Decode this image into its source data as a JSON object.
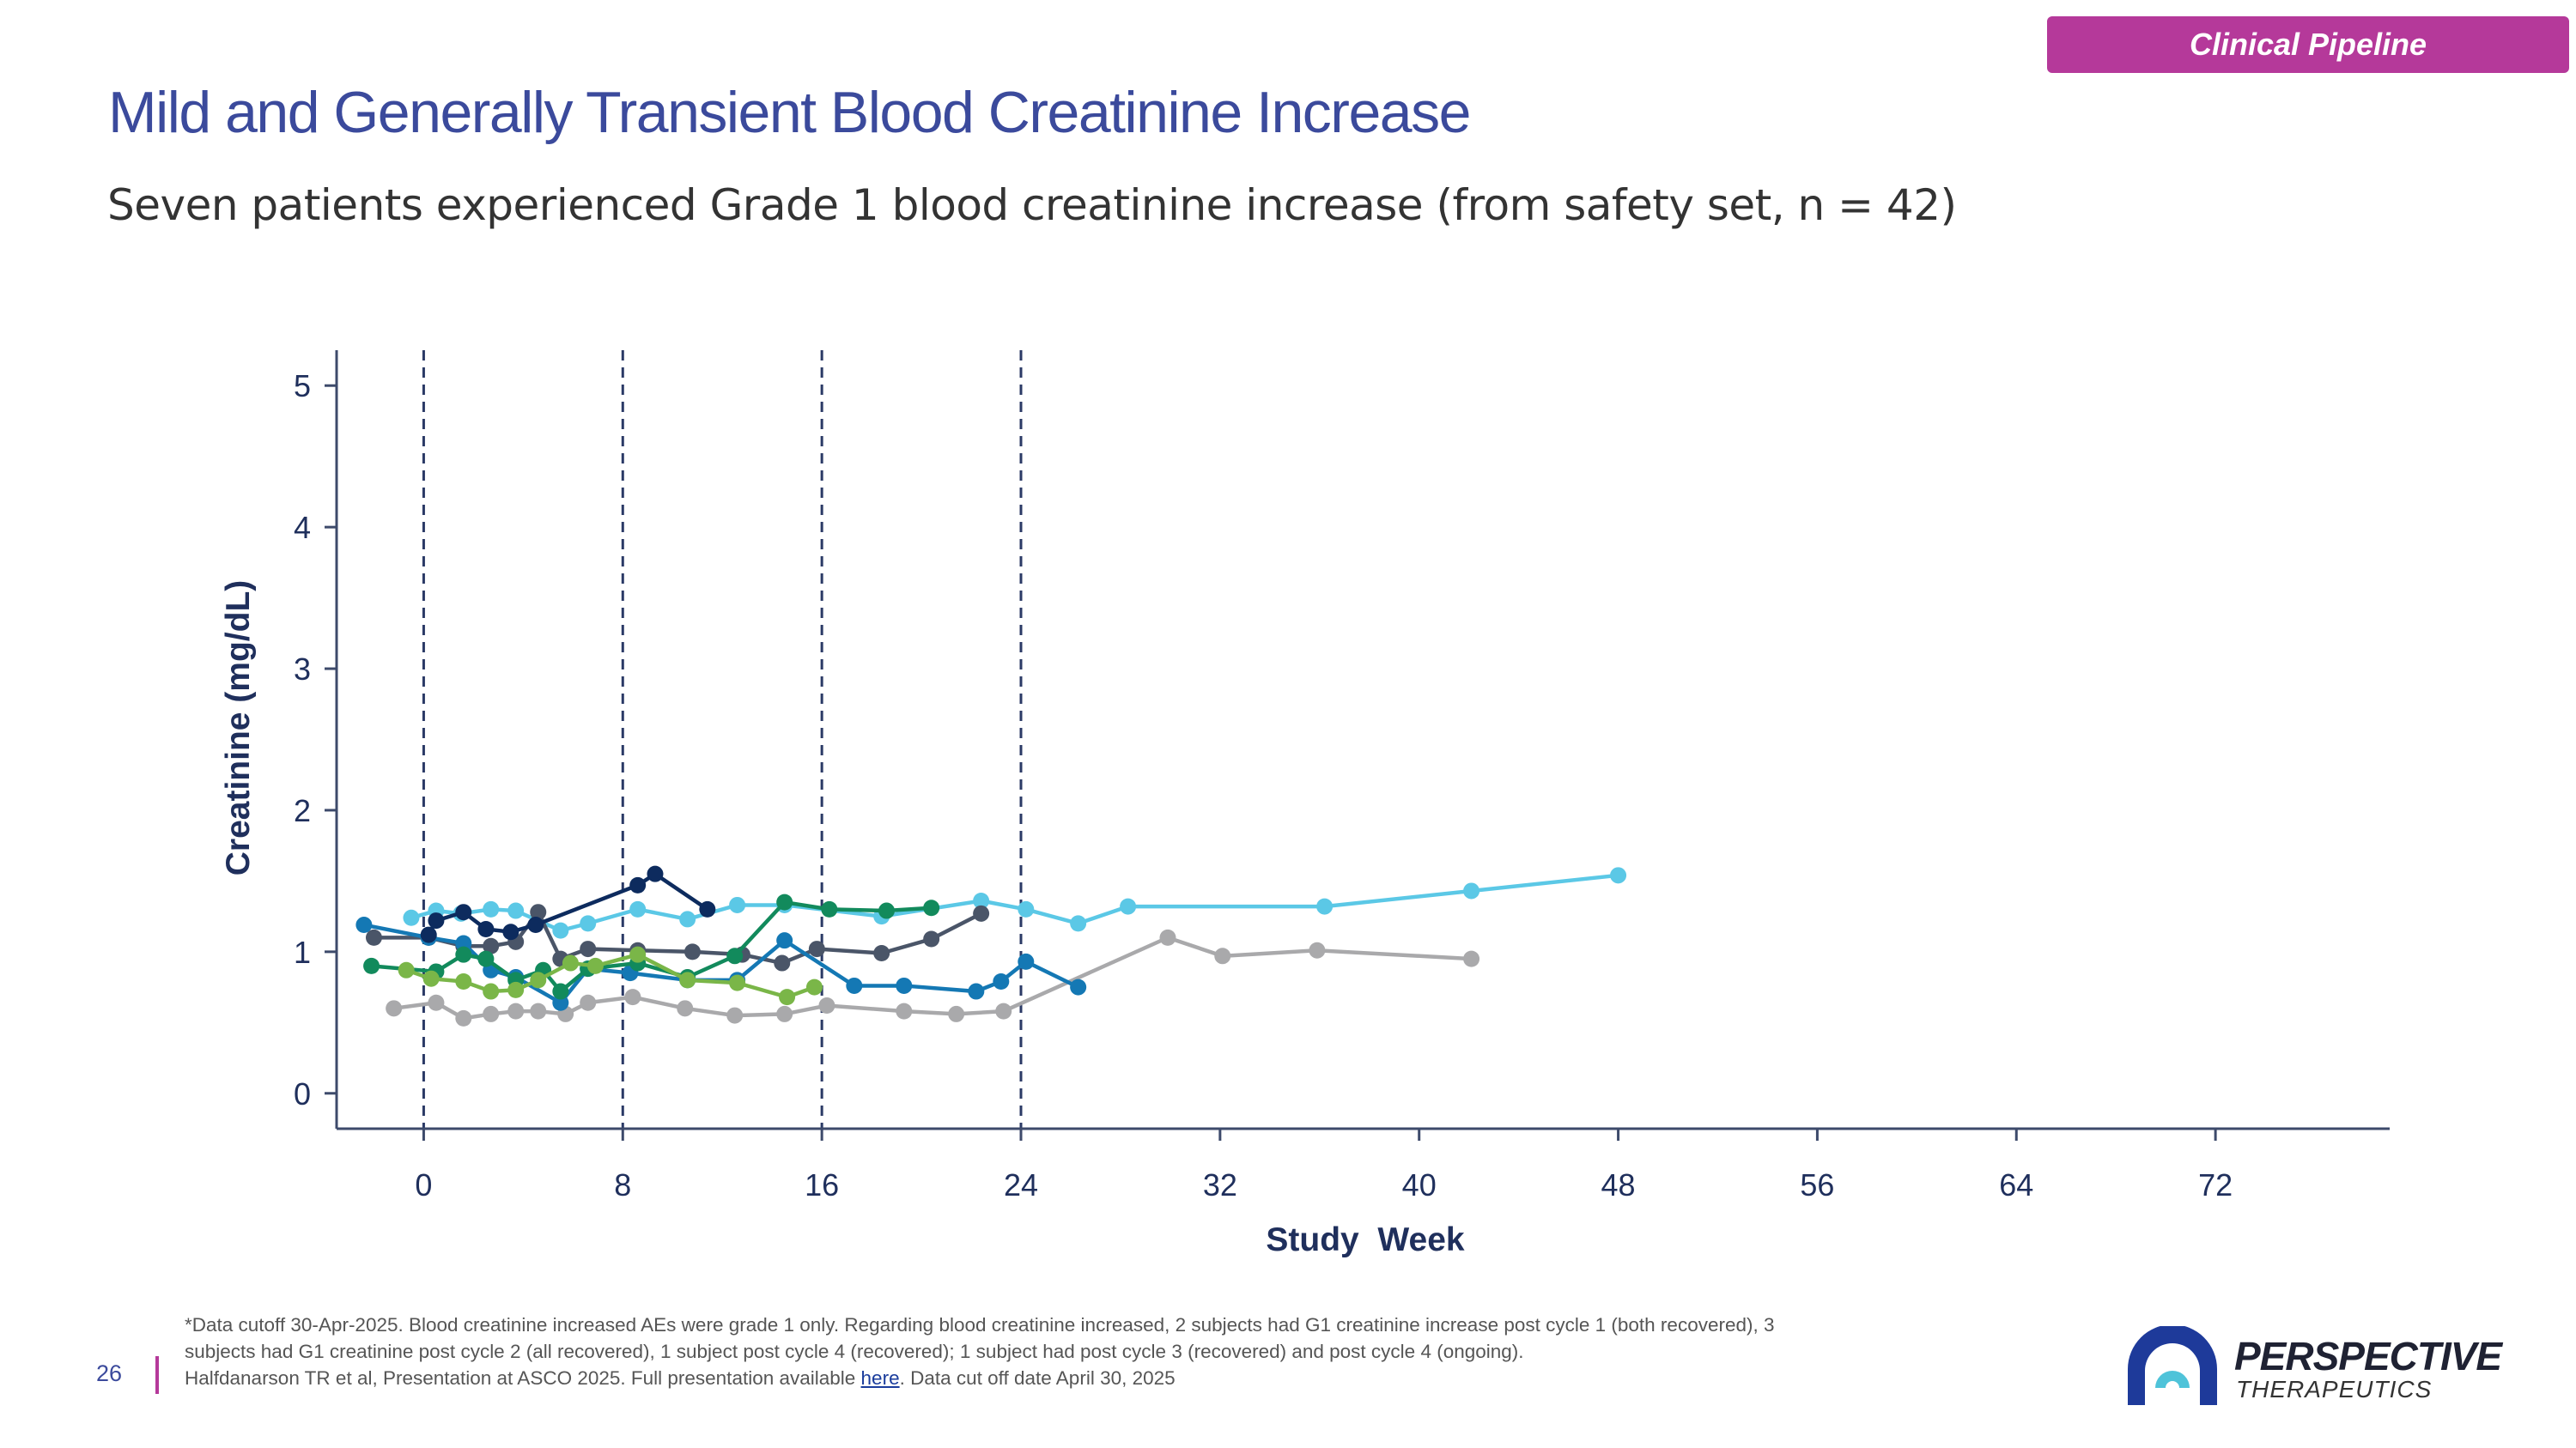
{
  "header": {
    "badge": "Clinical Pipeline",
    "title": "Mild and Generally Transient Blood Creatinine Increase",
    "subtitle": "Seven patients experienced Grade 1 blood creatinine increase (from safety set, n = 42)"
  },
  "chart_data": {
    "type": "line",
    "xlabel": "Study  Week",
    "ylabel": "Creatinine (mg/dL)",
    "xlim": [
      -3.5,
      79
    ],
    "ylim": [
      -0.25,
      5.25
    ],
    "xticks": [
      0,
      8,
      16,
      24,
      32,
      40,
      48,
      56,
      64,
      72
    ],
    "yticks": [
      0,
      1,
      2,
      3,
      4,
      5
    ],
    "reference_lines_x": [
      0,
      8,
      16,
      24
    ],
    "grid": false,
    "series": [
      {
        "color": "#5bc8e6",
        "x": [
          -0.5,
          0.5,
          1.5,
          2.7,
          3.7,
          5.5,
          6.6,
          8.6,
          10.6,
          12.6,
          14.5,
          18.4,
          22.4,
          24.2,
          26.3,
          28.3,
          36.2,
          42.1,
          48
        ],
        "y": [
          1.24,
          1.29,
          1.27,
          1.3,
          1.29,
          1.15,
          1.2,
          1.3,
          1.23,
          1.33,
          1.33,
          1.25,
          1.36,
          1.3,
          1.2,
          1.32,
          1.32,
          1.43,
          1.54
        ]
      },
      {
        "color": "#a9a9ab",
        "x": [
          -1.2,
          0.5,
          1.6,
          2.7,
          3.7,
          4.6,
          5.7,
          6.6,
          8.4,
          10.5,
          12.5,
          14.5,
          16.2,
          19.3,
          21.4,
          23.3,
          29.9,
          32.1,
          35.9,
          42.1
        ],
        "y": [
          0.6,
          0.64,
          0.53,
          0.56,
          0.58,
          0.58,
          0.56,
          0.64,
          0.68,
          0.6,
          0.55,
          0.56,
          0.62,
          0.58,
          0.56,
          0.58,
          1.1,
          0.97,
          1.01,
          0.95
        ]
      },
      {
        "color": "#4a5568",
        "x": [
          -2,
          0.2,
          1.6,
          2.7,
          3.7,
          4.6,
          5.5,
          6.6,
          8.6,
          10.8,
          12.8,
          14.4,
          15.8,
          18.4,
          20.4,
          22.4
        ],
        "y": [
          1.1,
          1.1,
          1.04,
          1.04,
          1.07,
          1.28,
          0.95,
          1.02,
          1.01,
          1.0,
          0.98,
          0.92,
          1.02,
          0.99,
          1.09,
          1.27
        ]
      },
      {
        "color": "#1478b4",
        "x": [
          -2.4,
          0.2,
          1.6,
          2.7,
          3.7,
          5.5,
          6.6,
          8.3,
          10.6,
          12.6,
          14.5,
          17.3,
          19.3,
          22.2,
          23.2,
          24.2,
          26.3
        ],
        "y": [
          1.19,
          1.1,
          1.06,
          0.87,
          0.82,
          0.64,
          0.88,
          0.85,
          0.8,
          0.8,
          1.08,
          0.76,
          0.76,
          0.72,
          0.79,
          0.93,
          0.75
        ]
      },
      {
        "color": "#128a5c",
        "x": [
          -2.1,
          0.5,
          1.6,
          2.5,
          3.7,
          4.8,
          5.5,
          6.6,
          8.6,
          10.6,
          12.5,
          14.5,
          16.3,
          18.6,
          20.4
        ],
        "y": [
          0.9,
          0.86,
          0.98,
          0.95,
          0.8,
          0.87,
          0.72,
          0.88,
          0.92,
          0.82,
          0.97,
          1.35,
          1.3,
          1.29,
          1.31
        ]
      },
      {
        "color": "#7ab648",
        "x": [
          -0.7,
          0.3,
          1.6,
          2.7,
          3.7,
          4.6,
          5.9,
          6.9,
          8.6,
          10.6,
          12.6,
          14.6,
          15.7
        ],
        "y": [
          0.87,
          0.81,
          0.79,
          0.72,
          0.73,
          0.8,
          0.92,
          0.9,
          0.98,
          0.8,
          0.78,
          0.68,
          0.75
        ]
      },
      {
        "color": "#0d2b5e",
        "x": [
          0.2,
          0.5,
          1.6,
          2.5,
          3.5,
          4.5,
          8.6,
          9.3,
          11.4
        ],
        "y": [
          1.12,
          1.22,
          1.28,
          1.16,
          1.14,
          1.19,
          1.47,
          1.55,
          1.3
        ]
      }
    ]
  },
  "footer": {
    "note_line1": "*Data cutoff 30-Apr-2025. Blood creatinine increased AEs were grade 1 only.  Regarding blood creatinine increased, 2 subjects had G1 creatinine increase post cycle 1 (both recovered), 3",
    "note_line2": "subjects had G1 creatinine post cycle 2 (all recovered), 1 subject post cycle 4 (recovered); 1 subject had post cycle 3 (recovered) and post cycle 4 (ongoing).",
    "ref_prefix": "Halfdanarson TR et al, Presentation at ASCO 2025. Full presentation available ",
    "ref_link": "here",
    "ref_suffix": ". Data cut off date April 30, 2025",
    "page_number": "26"
  },
  "logo": {
    "name": "PERSPECTIVE",
    "sub": "THERAPEUTICS"
  }
}
